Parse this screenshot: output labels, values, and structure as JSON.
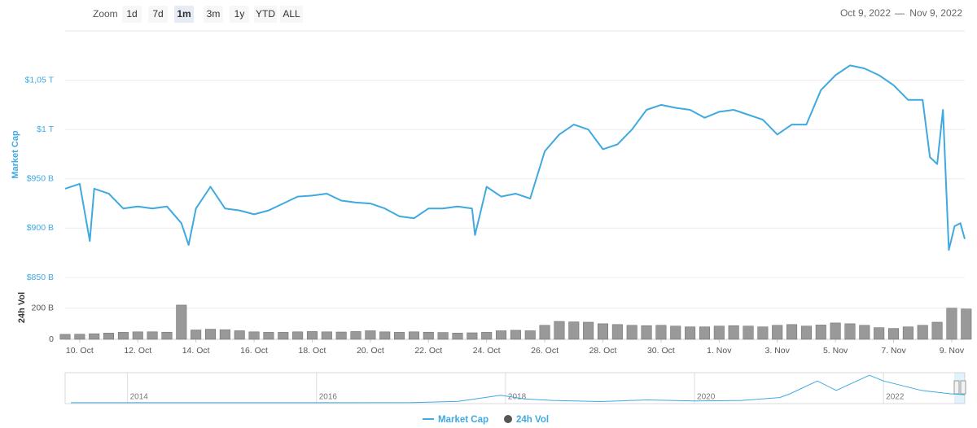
{
  "toolbar": {
    "zoom_label": "Zoom",
    "buttons": [
      {
        "label": "1d",
        "active": false
      },
      {
        "label": "7d",
        "active": false
      },
      {
        "label": "1m",
        "active": true
      },
      {
        "label": "3m",
        "active": false
      },
      {
        "label": "1y",
        "active": false
      },
      {
        "label": "YTD",
        "active": false
      },
      {
        "label": "ALL",
        "active": false
      }
    ]
  },
  "date_range": {
    "from": "Oct 9, 2022",
    "separator": "—",
    "to": "Nov 9, 2022"
  },
  "chart_data": [
    {
      "type": "line",
      "y_label": "Market Cap",
      "x": [
        0.5,
        1,
        1.35,
        1.5,
        2,
        2.5,
        3,
        3.5,
        4,
        4.5,
        4.75,
        5,
        5.5,
        6,
        6.5,
        7,
        7.5,
        8,
        8.5,
        9,
        9.5,
        10,
        10.5,
        11,
        11.5,
        12,
        12.5,
        13,
        13.5,
        14,
        14.5,
        14.6,
        15,
        15.5,
        16,
        16.5,
        17,
        17.5,
        18,
        18.5,
        19,
        19.5,
        20,
        20.5,
        21,
        21.5,
        22,
        22.5,
        23,
        23.5,
        24,
        24.5,
        25,
        25.5,
        26,
        26.5,
        27,
        27.5,
        28,
        28.5,
        29,
        29.5,
        30,
        30.25,
        30.5,
        30.7,
        30.9,
        31.1,
        31.3,
        31.45
      ],
      "series": [
        {
          "name": "Market Cap",
          "color": "#3fa9e0",
          "values": [
            940,
            945,
            887,
            940,
            935,
            920,
            922,
            920,
            922,
            905,
            883,
            920,
            942,
            920,
            918,
            914,
            918,
            925,
            932,
            933,
            935,
            928,
            926,
            925,
            920,
            912,
            910,
            920,
            920,
            922,
            920,
            893,
            942,
            932,
            935,
            930,
            978,
            995,
            1005,
            1000,
            980,
            985,
            1000,
            1020,
            1025,
            1022,
            1020,
            1012,
            1018,
            1020,
            1015,
            1010,
            995,
            1005,
            1005,
            1040,
            1055,
            1065,
            1062,
            1055,
            1045,
            1030,
            1030,
            972,
            965,
            1020,
            878,
            902,
            905,
            889
          ]
        }
      ],
      "xlim": [
        0.5,
        31.45
      ],
      "ylim": [
        850,
        1100
      ],
      "yticks": [
        {
          "value": 850,
          "label": "$850 B"
        },
        {
          "value": 900,
          "label": "$900 B"
        },
        {
          "value": 950,
          "label": "$950 B"
        },
        {
          "value": 1000,
          "label": "$1 T"
        },
        {
          "value": 1050,
          "label": "$1,05 T"
        }
      ],
      "grid": true
    },
    {
      "type": "bar",
      "y_label": "24h Vol",
      "x": [
        0.5,
        1,
        1.5,
        2,
        2.5,
        3,
        3.5,
        4,
        4.5,
        5,
        5.5,
        6,
        6.5,
        7,
        7.5,
        8,
        8.5,
        9,
        9.5,
        10,
        10.5,
        11,
        11.5,
        12,
        12.5,
        13,
        13.5,
        14,
        14.5,
        15,
        15.5,
        16,
        16.5,
        17,
        17.5,
        18,
        18.5,
        19,
        19.5,
        20,
        20.5,
        21,
        21.5,
        22,
        22.5,
        23,
        23.5,
        24,
        24.5,
        25,
        25.5,
        26,
        26.5,
        27,
        27.5,
        28,
        28.5,
        29,
        29.5,
        30,
        30.5,
        31,
        31.5
      ],
      "series": [
        {
          "name": "24h Vol",
          "color": "#999999",
          "values": [
            32,
            33,
            36,
            40,
            45,
            48,
            48,
            46,
            220,
            60,
            65,
            62,
            55,
            48,
            45,
            45,
            48,
            50,
            48,
            47,
            50,
            55,
            48,
            45,
            48,
            46,
            44,
            40,
            42,
            45,
            55,
            58,
            55,
            90,
            115,
            112,
            110,
            100,
            95,
            90,
            88,
            90,
            85,
            80,
            80,
            85,
            88,
            85,
            80,
            90,
            95,
            85,
            92,
            105,
            100,
            90,
            75,
            70,
            80,
            90,
            110,
            200,
            195
          ]
        }
      ],
      "xlim": [
        0.5,
        31.45
      ],
      "ylim": [
        0,
        230
      ],
      "yticks": [
        0,
        {
          "value": 200,
          "label": "200 B"
        }
      ],
      "xticks": [
        {
          "value": 1,
          "label": "10. Oct"
        },
        {
          "value": 3,
          "label": "12. Oct"
        },
        {
          "value": 5,
          "label": "14. Oct"
        },
        {
          "value": 7,
          "label": "16. Oct"
        },
        {
          "value": 9,
          "label": "18. Oct"
        },
        {
          "value": 11,
          "label": "20. Oct"
        },
        {
          "value": 13,
          "label": "22. Oct"
        },
        {
          "value": 15,
          "label": "24. Oct"
        },
        {
          "value": 17,
          "label": "26. Oct"
        },
        {
          "value": 19,
          "label": "28. Oct"
        },
        {
          "value": 21,
          "label": "30. Oct"
        },
        {
          "value": 23,
          "label": "1. Nov"
        },
        {
          "value": 25,
          "label": "3. Nov"
        },
        {
          "value": 27,
          "label": "5. Nov"
        },
        {
          "value": 29,
          "label": "7. Nov"
        },
        {
          "value": 31,
          "label": "9. Nov"
        }
      ]
    },
    {
      "type": "line",
      "x": [
        2013.4,
        2014,
        2015,
        2016,
        2017,
        2017.5,
        2017.95,
        2018.2,
        2018.5,
        2019,
        2019.5,
        2020,
        2020.5,
        2020.9,
        2021,
        2021.3,
        2021.5,
        2021.85,
        2022,
        2022.4,
        2022.7,
        2022.86
      ],
      "series": [
        {
          "color": "#3fa9e0",
          "values": [
            10,
            10,
            5,
            10,
            20,
            150,
            800,
            400,
            250,
            130,
            300,
            200,
            250,
            550,
            900,
            2300,
            1300,
            2900,
            2300,
            1300,
            950,
            850
          ]
        }
      ],
      "xlim": [
        2013.34,
        2022.86
      ],
      "ylim": [
        0,
        3000
      ],
      "xticks": [
        2014,
        2016,
        2018,
        2020,
        2022
      ]
    }
  ]
}
